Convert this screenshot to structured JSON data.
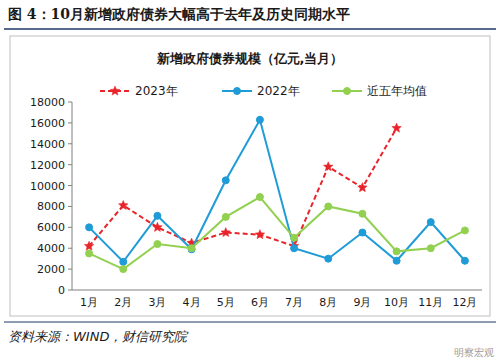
{
  "chart_data": {
    "type": "line",
    "title": "图 4：10月新增政府债券大幅高于去年及历史同期水平",
    "subtitle": "新增政府债券规模（亿元,当月）",
    "annotations": [
      "资料来源：WIND，财信研究院",
      "明察宏观"
    ],
    "categories": [
      "1月",
      "2月",
      "3月",
      "4月",
      "5月",
      "6月",
      "7月",
      "8月",
      "9月",
      "10月",
      "11月",
      "12月"
    ],
    "series": [
      {
        "name": "2023年",
        "color": "#e8242a",
        "marker": "star",
        "line_style": "dashed",
        "values": [
          4200,
          8100,
          6000,
          4500,
          5500,
          5300,
          4200,
          11800,
          9800,
          15500,
          null,
          null
        ]
      },
      {
        "name": "2022年",
        "color": "#1f9bd8",
        "marker": "circle",
        "line_style": "solid",
        "values": [
          6000,
          2700,
          7100,
          3900,
          10500,
          16300,
          4000,
          3000,
          5500,
          2800,
          6500,
          2800
        ]
      },
      {
        "name": "近五年均值",
        "color": "#92d050",
        "marker": "circle",
        "line_style": "solid",
        "values": [
          3500,
          2000,
          4400,
          4000,
          7000,
          8900,
          5000,
          8000,
          7300,
          3700,
          4000,
          5700
        ]
      }
    ],
    "ylim": [
      0,
      18000
    ],
    "yticks": [
      0,
      2000,
      4000,
      6000,
      8000,
      10000,
      12000,
      14000,
      16000,
      18000
    ],
    "grid": false,
    "legend": "top"
  }
}
